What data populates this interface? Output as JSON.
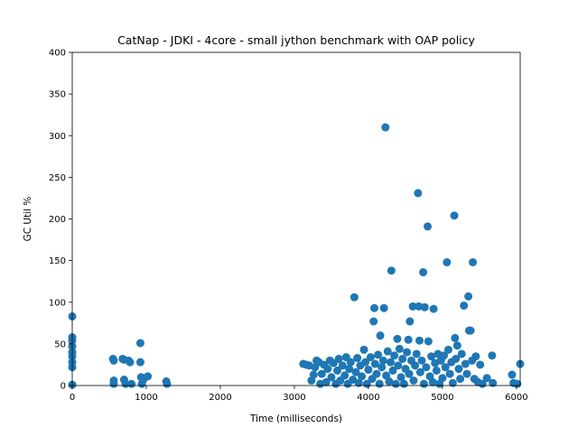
{
  "chart_data": {
    "type": "scatter",
    "title": "CatNap - JDKI - 4core -  small jython benchmark with OAP policy",
    "xlabel": "Time (milliseconds)",
    "ylabel": "GC Util %",
    "xlim": [
      0,
      6050
    ],
    "ylim": [
      0,
      400
    ],
    "x_ticks": [
      0,
      1000,
      2000,
      3000,
      4000,
      5000,
      6000
    ],
    "y_ticks": [
      0,
      50,
      100,
      150,
      200,
      250,
      300,
      350,
      400
    ],
    "x_tick_labels": [
      "0",
      "1000",
      "2000",
      "3000",
      "4000",
      "5000",
      "6000"
    ],
    "y_tick_labels": [
      "0",
      "50",
      "100",
      "150",
      "200",
      "250",
      "300",
      "350",
      "400"
    ],
    "grid": false,
    "marker_color": "#1f77b4",
    "series": [
      {
        "points": [
          [
            0,
            83
          ],
          [
            0,
            58
          ],
          [
            0,
            54
          ],
          [
            0,
            47
          ],
          [
            0,
            40
          ],
          [
            0,
            35
          ],
          [
            0,
            28
          ],
          [
            0,
            22
          ],
          [
            0,
            1
          ],
          [
            550,
            32
          ],
          [
            560,
            30
          ],
          [
            560,
            6
          ],
          [
            560,
            2
          ],
          [
            680,
            32
          ],
          [
            700,
            31
          ],
          [
            700,
            7
          ],
          [
            720,
            2
          ],
          [
            760,
            30
          ],
          [
            780,
            28
          ],
          [
            800,
            2
          ],
          [
            920,
            51
          ],
          [
            920,
            28
          ],
          [
            930,
            10
          ],
          [
            940,
            2
          ],
          [
            960,
            7
          ],
          [
            1020,
            11
          ],
          [
            1270,
            5
          ],
          [
            1280,
            2
          ],
          [
            3120,
            26
          ],
          [
            3160,
            25
          ],
          [
            3200,
            24
          ],
          [
            3230,
            6
          ],
          [
            3260,
            13
          ],
          [
            3280,
            22
          ],
          [
            3300,
            30
          ],
          [
            3330,
            28
          ],
          [
            3350,
            2
          ],
          [
            3370,
            14
          ],
          [
            3400,
            25
          ],
          [
            3430,
            4
          ],
          [
            3450,
            20
          ],
          [
            3480,
            30
          ],
          [
            3500,
            10
          ],
          [
            3530,
            27
          ],
          [
            3560,
            2
          ],
          [
            3580,
            18
          ],
          [
            3600,
            32
          ],
          [
            3620,
            6
          ],
          [
            3650,
            24
          ],
          [
            3680,
            12
          ],
          [
            3700,
            34
          ],
          [
            3720,
            2
          ],
          [
            3740,
            20
          ],
          [
            3760,
            28
          ],
          [
            3790,
            7
          ],
          [
            3810,
            106
          ],
          [
            3830,
            16
          ],
          [
            3850,
            33
          ],
          [
            3870,
            3
          ],
          [
            3890,
            24
          ],
          [
            3910,
            11
          ],
          [
            3940,
            43
          ],
          [
            3960,
            28
          ],
          [
            3980,
            2
          ],
          [
            4000,
            19
          ],
          [
            4030,
            34
          ],
          [
            4050,
            8
          ],
          [
            4070,
            77
          ],
          [
            4080,
            93
          ],
          [
            4090,
            26
          ],
          [
            4110,
            14
          ],
          [
            4130,
            37
          ],
          [
            4150,
            2
          ],
          [
            4160,
            60
          ],
          [
            4180,
            22
          ],
          [
            4200,
            30
          ],
          [
            4210,
            93
          ],
          [
            4230,
            310
          ],
          [
            4240,
            12
          ],
          [
            4260,
            41
          ],
          [
            4280,
            5
          ],
          [
            4300,
            28
          ],
          [
            4310,
            138
          ],
          [
            4330,
            18
          ],
          [
            4350,
            36
          ],
          [
            4370,
            2
          ],
          [
            4390,
            56
          ],
          [
            4400,
            24
          ],
          [
            4420,
            44
          ],
          [
            4440,
            10
          ],
          [
            4460,
            32
          ],
          [
            4480,
            2
          ],
          [
            4500,
            20
          ],
          [
            4520,
            40
          ],
          [
            4540,
            55
          ],
          [
            4550,
            14
          ],
          [
            4560,
            77
          ],
          [
            4580,
            30
          ],
          [
            4600,
            95
          ],
          [
            4610,
            6
          ],
          [
            4630,
            24
          ],
          [
            4650,
            38
          ],
          [
            4670,
            231
          ],
          [
            4680,
            95
          ],
          [
            4690,
            54
          ],
          [
            4700,
            16
          ],
          [
            4720,
            30
          ],
          [
            4740,
            136
          ],
          [
            4750,
            2
          ],
          [
            4760,
            94
          ],
          [
            4780,
            22
          ],
          [
            4800,
            191
          ],
          [
            4810,
            53
          ],
          [
            4830,
            11
          ],
          [
            4850,
            35
          ],
          [
            4870,
            4
          ],
          [
            4880,
            92
          ],
          [
            4900,
            27
          ],
          [
            4920,
            18
          ],
          [
            4940,
            38
          ],
          [
            4960,
            2
          ],
          [
            4980,
            30
          ],
          [
            5000,
            9
          ],
          [
            5020,
            36
          ],
          [
            5040,
            22
          ],
          [
            5060,
            148
          ],
          [
            5080,
            43
          ],
          [
            5100,
            14
          ],
          [
            5120,
            28
          ],
          [
            5140,
            3
          ],
          [
            5160,
            204
          ],
          [
            5170,
            57
          ],
          [
            5180,
            32
          ],
          [
            5200,
            48
          ],
          [
            5220,
            20
          ],
          [
            5240,
            8
          ],
          [
            5260,
            38
          ],
          [
            5290,
            96
          ],
          [
            5310,
            26
          ],
          [
            5330,
            14
          ],
          [
            5350,
            107
          ],
          [
            5360,
            66
          ],
          [
            5380,
            66
          ],
          [
            5400,
            30
          ],
          [
            5410,
            148
          ],
          [
            5430,
            8
          ],
          [
            5450,
            35
          ],
          [
            5480,
            4
          ],
          [
            5510,
            25
          ],
          [
            5540,
            2
          ],
          [
            5600,
            9
          ],
          [
            5670,
            36
          ],
          [
            5680,
            3
          ],
          [
            5940,
            13
          ],
          [
            5960,
            3
          ],
          [
            6010,
            2
          ],
          [
            6050,
            26
          ]
        ]
      }
    ]
  }
}
